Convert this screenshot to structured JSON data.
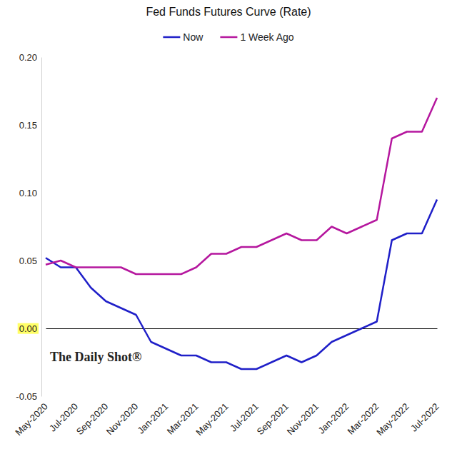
{
  "chart_data": {
    "type": "line",
    "title": "Fed Funds Futures Curve (Rate)",
    "annotation": "The Daily Shot®",
    "categories": [
      "May-2020",
      null,
      "Jul-2020",
      null,
      "Sep-2020",
      null,
      "Nov-2020",
      null,
      "Jan-2021",
      null,
      "Mar-2021",
      null,
      "May-2021",
      null,
      "Jul-2021",
      null,
      "Sep-2021",
      null,
      "Nov-2021",
      null,
      "Jan-2022",
      null,
      "Mar-2022",
      null,
      "May-2022",
      null,
      "Jul-2022"
    ],
    "series": [
      {
        "name": "Now",
        "color": "#1f1fc8",
        "values": [
          0.052,
          0.045,
          0.045,
          0.03,
          0.02,
          0.015,
          0.01,
          -0.01,
          -0.015,
          -0.02,
          -0.02,
          -0.025,
          -0.025,
          -0.03,
          -0.03,
          -0.025,
          -0.02,
          -0.025,
          -0.02,
          -0.01,
          -0.005,
          0.0,
          0.005,
          0.065,
          0.07,
          0.07,
          0.095
        ]
      },
      {
        "name": "1 Week Ago",
        "color": "#b5179e",
        "values": [
          0.047,
          0.05,
          0.045,
          0.045,
          0.045,
          0.045,
          0.04,
          0.04,
          0.04,
          0.04,
          0.045,
          0.055,
          0.055,
          0.06,
          0.06,
          0.065,
          0.07,
          0.065,
          0.065,
          0.075,
          0.07,
          0.075,
          0.08,
          0.14,
          0.145,
          0.145,
          0.17
        ]
      }
    ],
    "ylim": [
      -0.05,
      0.2
    ],
    "yticks": [
      -0.05,
      {
        "value": 0,
        "label": "0.00"
      },
      0.05,
      {
        "value": 0.1,
        "label": "0.10"
      },
      0.15,
      {
        "value": 0.2,
        "label": "0.20"
      }
    ],
    "legend": "top",
    "grid": false
  }
}
